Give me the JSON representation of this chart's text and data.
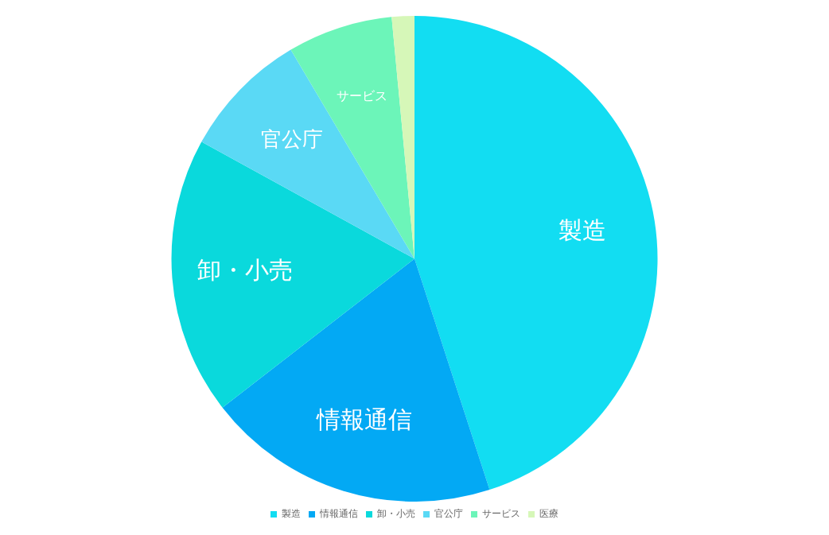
{
  "chart_data": {
    "type": "pie",
    "categories": [
      "製造",
      "情報通信",
      "卸・小売",
      "官公庁",
      "サービス",
      "医療"
    ],
    "values": [
      45,
      19.5,
      18.5,
      8.5,
      7,
      1.5
    ],
    "colors": [
      "#12ddf2",
      "#03a9f4",
      "#0ad9dc",
      "#5ad9f5",
      "#6cf5b9",
      "#d6f7b8"
    ],
    "legend": "bottom"
  }
}
